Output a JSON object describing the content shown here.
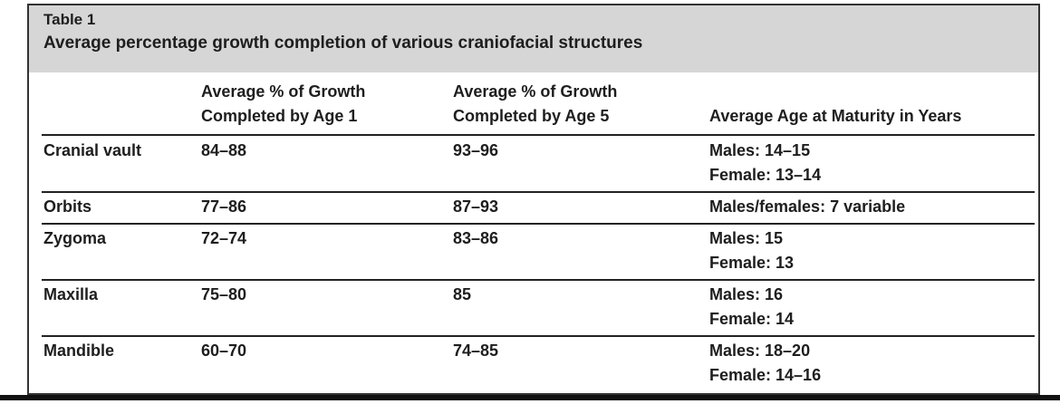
{
  "header": {
    "label": "Table 1",
    "title": "Average percentage growth completion of various craniofacial structures"
  },
  "table": {
    "columns": [
      [
        "Average % of Growth",
        "Completed by Age 1"
      ],
      [
        "Average % of Growth",
        "Completed by Age 5"
      ],
      [
        "Average Age at Maturity in Years"
      ]
    ],
    "rows": [
      [
        "Cranial vault",
        "84–88",
        "93–96",
        [
          "Males: 14–15",
          "Female: 13–14"
        ]
      ],
      [
        "Orbits",
        "77–86",
        "87–93",
        [
          "Males/females: 7 variable"
        ]
      ],
      [
        "Zygoma",
        "72–74",
        "83–86",
        [
          "Males: 15",
          "Female: 13"
        ]
      ],
      [
        "Maxilla",
        "75–80",
        "85",
        [
          "Males: 16",
          "Female: 14"
        ]
      ],
      [
        "Mandible",
        "60–70",
        "74–85",
        [
          "Males: 18–20",
          "Female: 14–16"
        ]
      ]
    ]
  }
}
